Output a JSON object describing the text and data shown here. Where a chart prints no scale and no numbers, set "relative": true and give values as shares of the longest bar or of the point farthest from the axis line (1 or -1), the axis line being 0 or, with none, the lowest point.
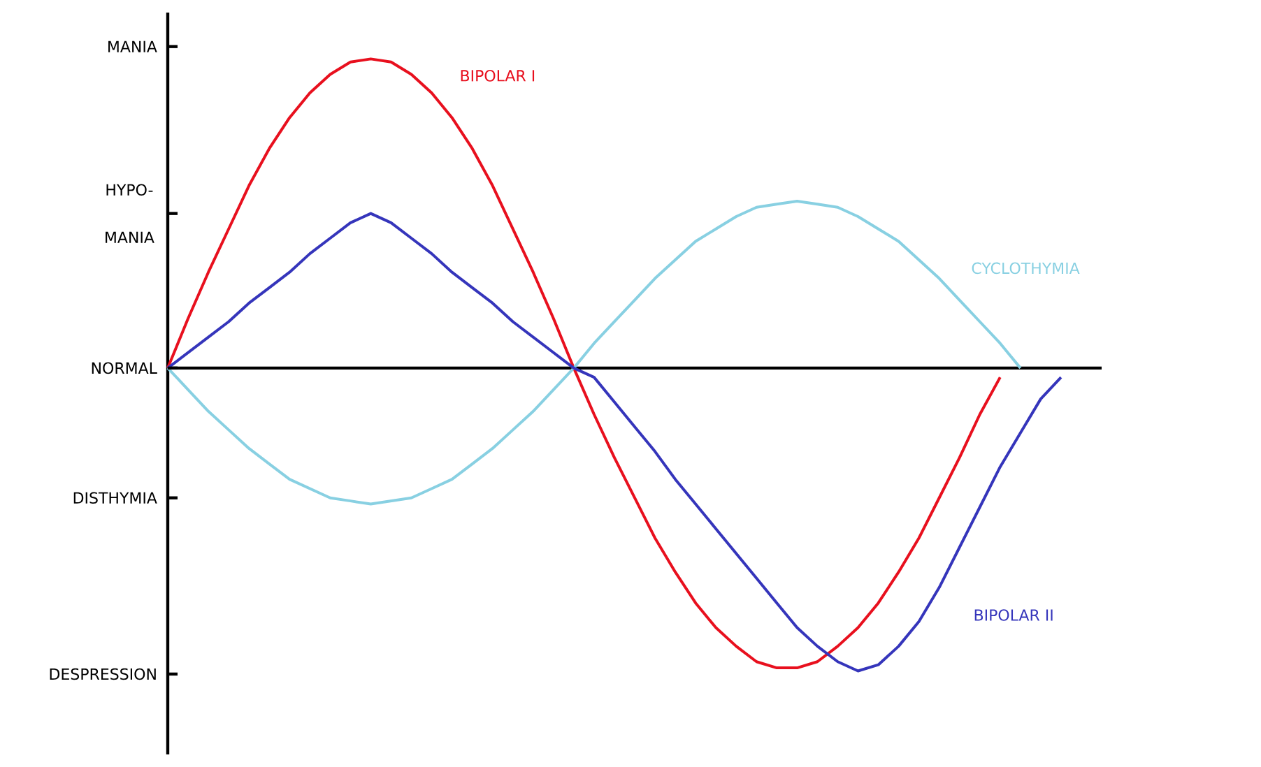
{
  "chart_data": {
    "type": "line",
    "relative": true,
    "categories": [
      null,
      null,
      null,
      null,
      null,
      null,
      null,
      null,
      null,
      null,
      null,
      null,
      null,
      null,
      null,
      null,
      null,
      null,
      null,
      null,
      null,
      null,
      null,
      null,
      null,
      null,
      null,
      null,
      null,
      null,
      null,
      null,
      null,
      null,
      null,
      null,
      null,
      null,
      null,
      null,
      null,
      null,
      null,
      null,
      null,
      null,
      null
    ],
    "annotations": [
      "MANIA",
      "HYPO- MANIA",
      "NORMAL",
      "DISTHYMIA",
      "DESPRESSION"
    ],
    "tick_labels": false,
    "marker": "none",
    "line_style": "solid",
    "series": [
      {
        "name": "BIPOLAR I",
        "color": "#e8101e",
        "values": [
          0,
          0.16,
          0.31,
          0.45,
          0.59,
          0.71,
          0.81,
          0.89,
          0.95,
          0.99,
          1,
          0.99,
          0.95,
          0.89,
          0.81,
          0.71,
          0.59,
          0.45,
          0.31,
          0.16,
          0,
          -0.15,
          -0.29,
          -0.42,
          -0.55,
          -0.66,
          -0.76,
          -0.84,
          -0.9,
          -0.95,
          -0.97,
          -0.97,
          -0.95,
          -0.9,
          -0.84,
          -0.76,
          -0.66,
          -0.55,
          -0.42,
          -0.29,
          -0.15,
          -0.03,
          null,
          null,
          null,
          null,
          null
        ]
      },
      {
        "name": "CYCLOTHYMIA",
        "color": "#88d0e2",
        "values": [
          0,
          -0.07,
          -0.14,
          -0.2,
          -0.26,
          -0.31,
          -0.36,
          -0.39,
          -0.42,
          -0.43,
          -0.44,
          -0.43,
          -0.42,
          -0.39,
          -0.36,
          -0.31,
          -0.26,
          -0.2,
          -0.14,
          -0.07,
          0,
          0.08,
          0.15,
          0.22,
          0.29,
          0.35,
          0.41,
          0.45,
          0.49,
          0.52,
          0.53,
          0.54,
          0.53,
          0.52,
          0.49,
          0.45,
          0.41,
          0.35,
          0.29,
          0.22,
          0.15,
          0.08,
          0,
          null,
          null,
          null,
          null
        ]
      },
      {
        "name": "BIPOLAR II",
        "color": "#3535bb",
        "values": [
          0,
          0.05,
          0.1,
          0.15,
          0.21,
          0.26,
          0.31,
          0.37,
          0.42,
          0.47,
          0.5,
          0.47,
          0.42,
          0.37,
          0.31,
          0.26,
          0.21,
          0.15,
          0.1,
          0.05,
          0,
          -0.03,
          -0.11,
          -0.19,
          -0.27,
          -0.36,
          -0.44,
          -0.52,
          -0.6,
          -0.68,
          -0.76,
          -0.84,
          -0.9,
          -0.95,
          -0.98,
          -0.96,
          -0.9,
          -0.82,
          -0.71,
          -0.58,
          -0.45,
          -0.32,
          -0.21,
          -0.1,
          -0.03,
          null,
          null
        ]
      }
    ]
  }
}
